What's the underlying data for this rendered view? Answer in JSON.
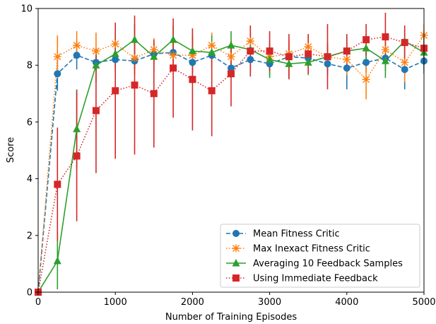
{
  "chart_data": {
    "type": "line",
    "title": "",
    "xlabel": "Number of Training Episodes",
    "ylabel": "Score",
    "xlim": [
      0,
      5000
    ],
    "ylim": [
      0,
      10
    ],
    "xticks": [
      0,
      1000,
      2000,
      3000,
      4000,
      5000
    ],
    "yticks": [
      0,
      2,
      4,
      6,
      8,
      10
    ],
    "grid": false,
    "legend": "bottom-right",
    "x": [
      0,
      250,
      500,
      750,
      1000,
      1250,
      1500,
      1750,
      2000,
      2250,
      2500,
      2750,
      3000,
      3250,
      3500,
      3750,
      4000,
      4250,
      4500,
      4750,
      5000
    ],
    "series": [
      {
        "name": "Mean Fitness Critic",
        "color": "#1f77b4",
        "marker": "circle",
        "linestyle": "dashed",
        "values": [
          0,
          7.7,
          8.35,
          8.1,
          8.2,
          8.15,
          8.4,
          8.45,
          8.1,
          8.35,
          7.9,
          8.2,
          8.05,
          8.3,
          8.25,
          8.05,
          7.9,
          8.1,
          8.25,
          7.85,
          8.15
        ],
        "errors": [
          0,
          0.6,
          0.5,
          0.3,
          0.45,
          0.3,
          0.35,
          0.3,
          0.4,
          0.3,
          0.35,
          0.45,
          0.4,
          0.35,
          0.3,
          0.4,
          0.75,
          0.35,
          0.45,
          0.7,
          0.45
        ]
      },
      {
        "name": "Max Inexact Fitness Critic",
        "color": "#ff7f0e",
        "marker": "x",
        "linestyle": "dotted",
        "values": [
          0,
          8.3,
          8.7,
          8.5,
          8.75,
          8.25,
          8.55,
          8.35,
          8.35,
          8.7,
          8.3,
          8.85,
          8.3,
          8.4,
          8.65,
          8.3,
          8.2,
          7.5,
          8.55,
          8.1,
          9.05
        ],
        "errors": [
          0,
          0.75,
          0.5,
          0.65,
          0.4,
          0.6,
          0.4,
          0.45,
          0.6,
          0.45,
          0.5,
          0.5,
          0.45,
          0.5,
          0.4,
          0.4,
          0.55,
          0.7,
          0.6,
          0.7,
          0.4
        ]
      },
      {
        "name": "Averaging 10 Feedback Samples",
        "color": "#2ca02c",
        "marker": "triangle",
        "linestyle": "solid",
        "values": [
          0,
          1.1,
          5.75,
          8.0,
          8.4,
          8.9,
          8.3,
          8.9,
          8.5,
          8.45,
          8.7,
          8.55,
          8.2,
          8.05,
          8.1,
          8.3,
          8.5,
          8.6,
          8.15,
          8.85,
          8.45
        ],
        "errors": [
          0,
          1.0,
          1.4,
          0.6,
          0.55,
          0.55,
          0.5,
          0.5,
          0.6,
          0.6,
          0.5,
          0.6,
          0.65,
          0.5,
          0.45,
          0.5,
          0.45,
          0.5,
          0.6,
          0.4,
          0.6
        ]
      },
      {
        "name": "Using Immediate Feedback",
        "color": "#d62728",
        "marker": "square",
        "linestyle": "dotted",
        "values": [
          0,
          3.8,
          4.8,
          6.4,
          7.1,
          7.3,
          7.0,
          7.9,
          7.5,
          7.1,
          7.7,
          8.5,
          8.5,
          8.3,
          8.4,
          8.3,
          8.5,
          8.9,
          9.0,
          8.8,
          8.6
        ],
        "errors": [
          0,
          2.0,
          2.3,
          2.2,
          2.4,
          2.45,
          1.9,
          1.75,
          1.8,
          1.6,
          1.15,
          0.9,
          0.7,
          0.8,
          0.7,
          1.15,
          0.6,
          0.55,
          0.85,
          0.6,
          0.6
        ]
      }
    ]
  }
}
